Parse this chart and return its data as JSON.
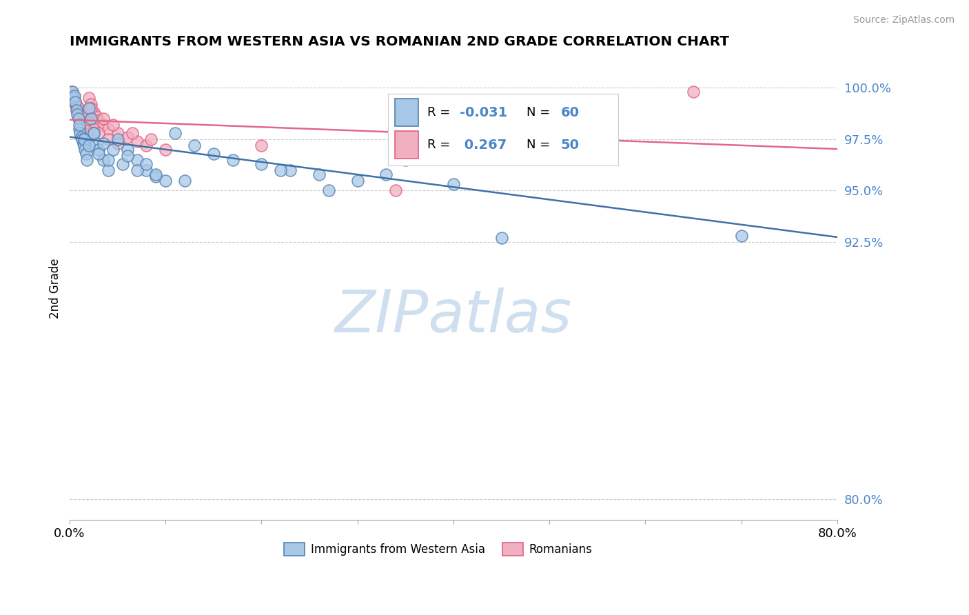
{
  "title": "IMMIGRANTS FROM WESTERN ASIA VS ROMANIAN 2ND GRADE CORRELATION CHART",
  "source": "Source: ZipAtlas.com",
  "ylabel": "2nd Grade",
  "xlim": [
    0.0,
    80.0
  ],
  "ylim": [
    79.0,
    101.5
  ],
  "yticks": [
    80.0,
    92.5,
    95.0,
    97.5,
    100.0
  ],
  "ytick_labels": [
    "80.0%",
    "92.5%",
    "95.0%",
    "97.5%",
    "100.0%"
  ],
  "blue_color": "#a8c8e8",
  "pink_color": "#f0b0c0",
  "blue_edge_color": "#5080b0",
  "pink_edge_color": "#e06080",
  "blue_line_color": "#4070a8",
  "pink_line_color": "#e06888",
  "legend_label_blue": "Immigrants from Western Asia",
  "legend_label_pink": "Romanians",
  "blue_R": -0.031,
  "blue_N": 60,
  "pink_R": 0.267,
  "pink_N": 50,
  "watermark_color": "#d0dff0",
  "blue_x": [
    0.3,
    0.4,
    0.5,
    0.6,
    0.7,
    0.8,
    0.9,
    1.0,
    1.1,
    1.2,
    1.3,
    1.4,
    1.5,
    1.6,
    1.7,
    1.8,
    2.0,
    2.2,
    2.5,
    2.8,
    3.0,
    3.5,
    4.0,
    5.0,
    6.0,
    7.0,
    8.0,
    9.0,
    10.0,
    11.0,
    13.0,
    15.0,
    17.0,
    20.0,
    23.0,
    26.0,
    30.0,
    35.0,
    40.0,
    45.0,
    50.0,
    1.0,
    1.5,
    2.0,
    3.0,
    4.0,
    5.5,
    7.0,
    9.0,
    12.0,
    2.5,
    3.5,
    4.5,
    6.0,
    8.0,
    45.0,
    27.0,
    33.0,
    70.0,
    22.0
  ],
  "blue_y": [
    99.8,
    99.5,
    99.6,
    99.3,
    98.9,
    98.7,
    98.5,
    98.0,
    97.8,
    97.6,
    97.5,
    97.3,
    97.2,
    97.0,
    96.8,
    96.5,
    99.0,
    98.5,
    97.8,
    97.3,
    97.0,
    96.5,
    96.0,
    97.5,
    97.0,
    96.5,
    96.0,
    95.7,
    95.5,
    97.8,
    97.2,
    96.8,
    96.5,
    96.3,
    96.0,
    95.8,
    95.5,
    96.5,
    95.3,
    97.2,
    97.0,
    98.2,
    97.5,
    97.2,
    96.8,
    96.5,
    96.3,
    96.0,
    95.8,
    95.5,
    97.8,
    97.3,
    97.0,
    96.7,
    96.3,
    92.7,
    95.0,
    95.8,
    92.8,
    96.0
  ],
  "pink_x": [
    0.2,
    0.3,
    0.4,
    0.5,
    0.6,
    0.7,
    0.8,
    0.9,
    1.0,
    1.1,
    1.2,
    1.3,
    1.4,
    1.5,
    1.6,
    1.8,
    2.0,
    2.2,
    2.5,
    2.8,
    3.0,
    3.5,
    4.0,
    5.0,
    6.0,
    7.0,
    8.0,
    10.0,
    0.9,
    1.1,
    1.5,
    2.0,
    2.5,
    3.0,
    4.0,
    5.0,
    0.5,
    1.3,
    2.2,
    3.5,
    4.5,
    6.5,
    8.5,
    34.0,
    55.0,
    65.0,
    20.0,
    0.6,
    1.8,
    0.8
  ],
  "pink_y": [
    99.8,
    99.6,
    99.5,
    99.3,
    99.2,
    99.0,
    98.9,
    98.7,
    98.5,
    98.4,
    98.2,
    98.0,
    98.3,
    98.1,
    97.9,
    97.7,
    99.5,
    99.2,
    98.8,
    98.6,
    98.4,
    98.2,
    98.0,
    97.8,
    97.6,
    97.4,
    97.2,
    97.0,
    99.0,
    98.7,
    98.5,
    98.3,
    98.0,
    97.8,
    97.5,
    97.3,
    99.4,
    98.8,
    99.0,
    98.5,
    98.2,
    97.8,
    97.5,
    95.0,
    97.5,
    99.8,
    97.2,
    99.3,
    97.9,
    99.1
  ]
}
